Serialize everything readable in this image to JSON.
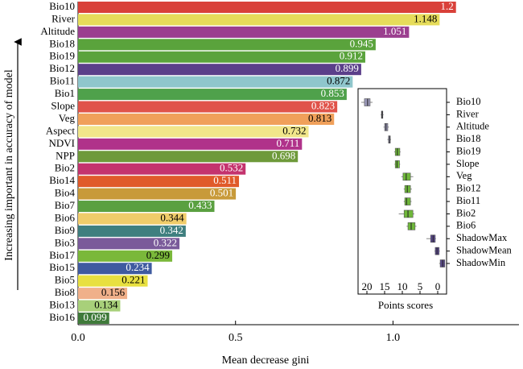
{
  "chart_data": [
    {
      "type": "barh",
      "xlabel": "Mean decrease gini",
      "ylabel": "Increasing important in accuracy of model",
      "categories": [
        "Bio10",
        "River",
        "Altitude",
        "Bio18",
        "Bio19",
        "Bio12",
        "Bio11",
        "Bio1",
        "Slope",
        "Veg",
        "Aspect",
        "NDVI",
        "NPP",
        "Bio2",
        "Bio14",
        "Bio4",
        "Bio7",
        "Bio6",
        "Bio9",
        "Bio3",
        "Bio17",
        "Bio15",
        "Bio5",
        "Bio8",
        "Bio13",
        "Bio16"
      ],
      "values": [
        1.2,
        1.148,
        1.051,
        0.945,
        0.912,
        0.899,
        0.872,
        0.853,
        0.823,
        0.813,
        0.732,
        0.711,
        0.698,
        0.532,
        0.511,
        0.501,
        0.433,
        0.344,
        0.342,
        0.322,
        0.299,
        0.234,
        0.221,
        0.156,
        0.134,
        0.099
      ],
      "colors": [
        "#d9413a",
        "#e6dc5a",
        "#9b3f8f",
        "#5aa33c",
        "#5aa33c",
        "#5b3f8a",
        "#8fc6cc",
        "#4fa14b",
        "#e0534a",
        "#f0a05a",
        "#f1e68a",
        "#b0328a",
        "#6e9a3a",
        "#c4336e",
        "#e05a2a",
        "#c89a3a",
        "#5aa040",
        "#f0cc6a",
        "#3f7f7f",
        "#7a5a9a",
        "#7ab83a",
        "#3f5aa0",
        "#e8e040",
        "#f0b08a",
        "#a8d07a",
        "#3f7a3a"
      ],
      "label_colors": [
        "#ffffff",
        "#000000",
        "#ffffff",
        "#ffffff",
        "#ffffff",
        "#ffffff",
        "#000000",
        "#ffffff",
        "#ffffff",
        "#000000",
        "#000000",
        "#ffffff",
        "#ffffff",
        "#ffffff",
        "#ffffff",
        "#ffffff",
        "#ffffff",
        "#000000",
        "#ffffff",
        "#ffffff",
        "#000000",
        "#ffffff",
        "#000000",
        "#000000",
        "#000000",
        "#ffffff"
      ],
      "xlim": [
        0,
        1.4
      ],
      "xticks": [
        {
          "value": 0,
          "label": "0.0"
        },
        0.5,
        {
          "value": 1,
          "label": "1.0"
        }
      ]
    },
    {
      "type": "boxh",
      "xlabel": "Points scores",
      "categories": [
        "Bio10",
        "River",
        "Altitude",
        "Bio18",
        "Bio19",
        "Slope",
        "Veg",
        "Bio12",
        "Bio11",
        "Bio2",
        "Bio6",
        "ShadowMax",
        "ShadowMean",
        "ShadowMin"
      ],
      "values": [
        [
          21.6,
          20.7,
          19.8,
          19.1,
          18.4
        ],
        [
          16.1,
          15.9,
          15.7,
          15.5,
          15.3
        ],
        [
          15.3,
          15.0,
          14.6,
          14.1,
          13.8
        ],
        [
          14.2,
          13.9,
          13.6,
          13.4,
          13.2
        ],
        [
          12.3,
          12.0,
          11.4,
          10.7,
          10.5
        ],
        [
          12.2,
          12.0,
          11.5,
          10.8,
          10.6
        ],
        [
          10.3,
          9.8,
          8.9,
          7.7,
          6.9
        ],
        [
          9.6,
          9.3,
          8.6,
          7.7,
          7.3
        ],
        [
          9.6,
          9.3,
          8.8,
          7.7,
          7.4
        ],
        [
          11.0,
          9.5,
          8.4,
          7.0,
          6.6
        ],
        [
          8.8,
          8.4,
          7.5,
          6.4,
          6.0
        ],
        [
          3.2,
          2.0,
          1.3,
          0.7,
          0.5
        ],
        [
          0.9,
          0.7,
          0.2,
          -0.4,
          -0.6
        ],
        [
          -0.4,
          -0.7,
          -1.4,
          -2.0,
          -2.1
        ]
      ],
      "colors": [
        "#9a98b8",
        "#9a98b8",
        "#9a98b8",
        "#9a98b8",
        "#6fb83a",
        "#6fb83a",
        "#6fb83a",
        "#6fb83a",
        "#6fb83a",
        "#6fb83a",
        "#6fb83a",
        "#5a4a8a",
        "#5a4a8a",
        "#5a4a8a"
      ],
      "xlim": [
        22.5,
        -2.5
      ],
      "xticks": [
        20,
        15,
        10,
        5,
        0
      ]
    }
  ]
}
